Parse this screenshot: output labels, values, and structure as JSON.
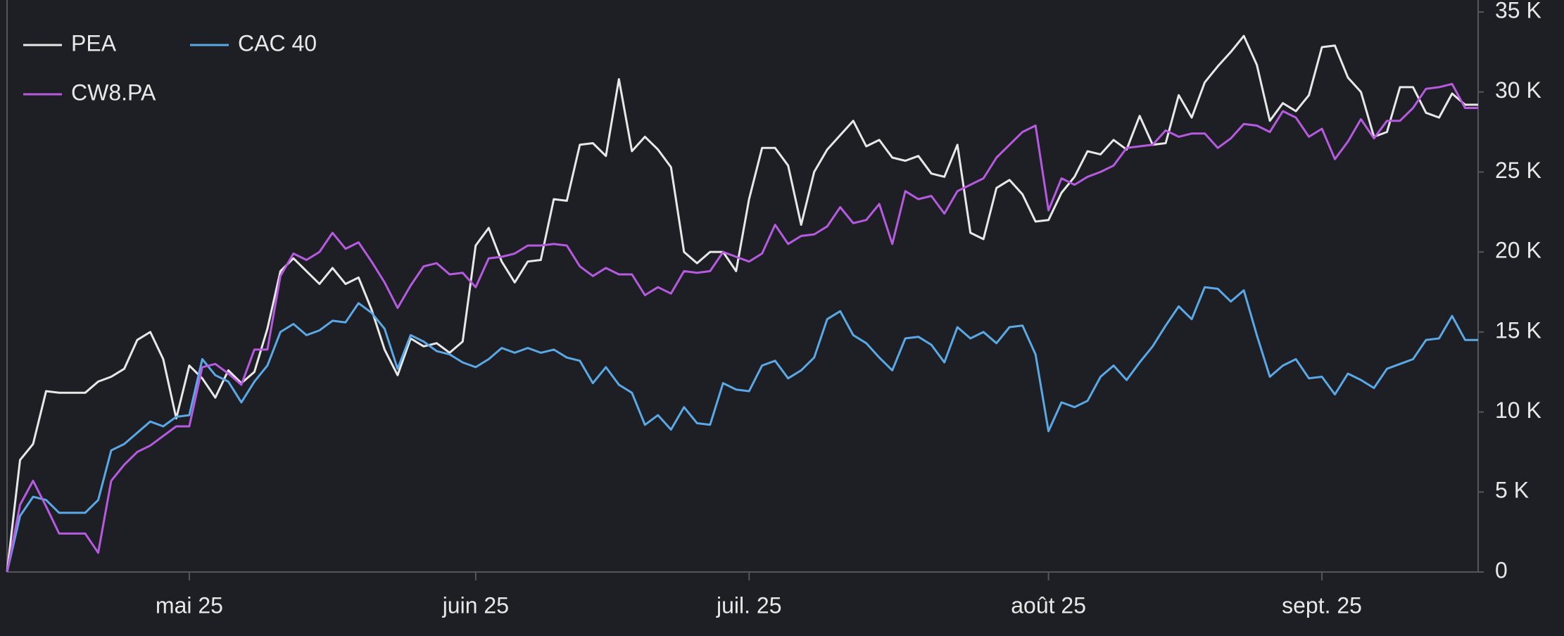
{
  "chart_data": {
    "type": "line",
    "categories": [
      null,
      null,
      null,
      null,
      null,
      null,
      null,
      null,
      null,
      null,
      null,
      null,
      null,
      null,
      "mai 25",
      null,
      null,
      null,
      null,
      null,
      null,
      null,
      null,
      null,
      null,
      null,
      null,
      null,
      null,
      null,
      null,
      null,
      null,
      null,
      null,
      null,
      "juin 25",
      null,
      null,
      null,
      null,
      null,
      null,
      null,
      null,
      null,
      null,
      null,
      null,
      null,
      null,
      null,
      null,
      null,
      null,
      null,
      null,
      "juil. 25",
      null,
      null,
      null,
      null,
      null,
      null,
      null,
      null,
      null,
      null,
      null,
      null,
      null,
      null,
      null,
      null,
      null,
      null,
      null,
      null,
      null,
      null,
      "août 25",
      null,
      null,
      null,
      null,
      null,
      null,
      null,
      null,
      null,
      null,
      null,
      null,
      null,
      null,
      null,
      null,
      null,
      null,
      null,
      null,
      "sept. 25",
      null,
      null,
      null,
      null,
      null,
      null,
      null,
      null,
      null,
      null,
      null,
      null
    ],
    "series": [
      {
        "name": "PEA",
        "color": "#e8e8e8",
        "values": [
          0,
          7000,
          8000,
          11300,
          11200,
          11200,
          11200,
          11900,
          12200,
          12700,
          14500,
          15000,
          13300,
          9600,
          12900,
          12100,
          10900,
          12600,
          11800,
          12500,
          15200,
          18800,
          19600,
          18800,
          18000,
          19000,
          18000,
          18400,
          16400,
          13900,
          12300,
          14600,
          14100,
          14300,
          13700,
          14400,
          20400,
          21500,
          19400,
          18100,
          19400,
          19500,
          23300,
          23200,
          26700,
          26800,
          26000,
          30800,
          26300,
          27200,
          26400,
          25300,
          20000,
          19300,
          20000,
          20000,
          18800,
          23300,
          26500,
          26500,
          25400,
          21700,
          25000,
          26400,
          27300,
          28200,
          26600,
          27000,
          25900,
          25700,
          26000,
          24900,
          24700,
          26700,
          21200,
          20800,
          24000,
          24500,
          23600,
          21900,
          22000,
          23700,
          24700,
          26300,
          26100,
          27000,
          26400,
          28500,
          26700,
          26800,
          29800,
          28400,
          30600,
          31600,
          32500,
          33500,
          31700,
          28200,
          29300,
          28800,
          29800,
          32800,
          32900,
          30900,
          30000,
          27200,
          27500,
          30300,
          30300,
          28700,
          28400,
          29900,
          29200,
          29200
        ]
      },
      {
        "name": "CAC 40",
        "color": "#5aa9e6",
        "values": [
          0,
          3500,
          4700,
          4500,
          3700,
          3700,
          3700,
          4500,
          7600,
          8000,
          8700,
          9400,
          9100,
          9700,
          9800,
          13300,
          12300,
          11900,
          10600,
          11900,
          12900,
          15000,
          15500,
          14800,
          15100,
          15700,
          15600,
          16800,
          16200,
          15200,
          12700,
          14800,
          14400,
          13800,
          13600,
          13100,
          12800,
          13300,
          14000,
          13700,
          14000,
          13700,
          13900,
          13400,
          13200,
          11800,
          12800,
          11700,
          11200,
          9200,
          9800,
          8900,
          10300,
          9300,
          9200,
          11800,
          11400,
          11300,
          12900,
          13200,
          12100,
          12600,
          13400,
          15800,
          16300,
          14800,
          14300,
          13400,
          12600,
          14600,
          14700,
          14200,
          13100,
          15300,
          14600,
          15000,
          14300,
          15300,
          15400,
          13600,
          8800,
          10600,
          10300,
          10700,
          12200,
          12900,
          12000,
          13100,
          14100,
          15400,
          16600,
          15800,
          17800,
          17700,
          16900,
          17600,
          14800,
          12200,
          12900,
          13300,
          12100,
          12200,
          11100,
          12400,
          12000,
          11500,
          12700,
          13000,
          13300,
          14500,
          14600,
          16000,
          14500,
          14500
        ]
      },
      {
        "name": "CW8.PA",
        "color": "#b65ae0",
        "values": [
          0,
          4200,
          5700,
          4100,
          2400,
          2400,
          2400,
          1200,
          5700,
          6700,
          7500,
          7900,
          8500,
          9100,
          9100,
          12800,
          13000,
          12400,
          11700,
          13900,
          13900,
          18500,
          19900,
          19500,
          20000,
          21200,
          20200,
          20600,
          19400,
          18100,
          16500,
          17900,
          19100,
          19300,
          18600,
          18700,
          17800,
          19600,
          19700,
          19900,
          20400,
          20400,
          20500,
          20400,
          19100,
          18500,
          19000,
          18600,
          18600,
          17300,
          17800,
          17400,
          18800,
          18700,
          18800,
          20000,
          19700,
          19400,
          19900,
          21700,
          20500,
          21000,
          21100,
          21600,
          22800,
          21800,
          22000,
          23000,
          20500,
          23800,
          23300,
          23500,
          22400,
          23800,
          24200,
          24600,
          25900,
          26700,
          27500,
          27900,
          22600,
          24600,
          24200,
          24700,
          25000,
          25400,
          26500,
          26600,
          26700,
          27600,
          27200,
          27400,
          27400,
          26500,
          27100,
          28000,
          27900,
          27500,
          28800,
          28400,
          27200,
          27700,
          25800,
          26900,
          28300,
          27100,
          28200,
          28200,
          29000,
          30200,
          30300,
          30500,
          29000,
          29000
        ]
      }
    ],
    "ylim": [
      0,
      35000
    ],
    "yticks": [
      0,
      {
        "value": 5000,
        "label": "5 K"
      },
      {
        "value": 10000,
        "label": "10 K"
      },
      {
        "value": 15000,
        "label": "15 K"
      },
      {
        "value": 20000,
        "label": "20 K"
      },
      {
        "value": 25000,
        "label": "25 K"
      },
      {
        "value": 30000,
        "label": "30 K"
      },
      {
        "value": 35000,
        "label": "35 K"
      }
    ],
    "yaxis_side": "right",
    "legend": "top-left",
    "grid": false
  }
}
